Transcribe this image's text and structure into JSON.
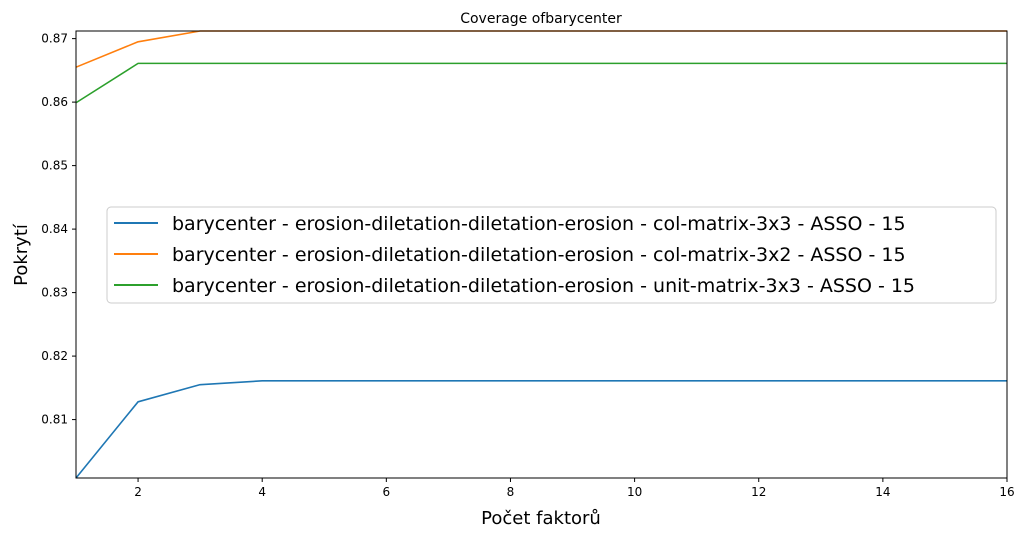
{
  "chart_data": {
    "type": "line",
    "title": "Coverage ofbarycenter",
    "xlabel": "Počet faktorů",
    "ylabel": "Pokrytí",
    "xlim": [
      1,
      16
    ],
    "ylim": [
      0.8008,
      0.8712
    ],
    "xticks": [
      2,
      4,
      6,
      8,
      10,
      12,
      14,
      16
    ],
    "yticks": [
      0.81,
      0.82,
      0.83,
      0.84,
      0.85,
      0.86,
      0.87
    ],
    "grid": false,
    "legend_position": "center-left",
    "x": [
      1,
      2,
      3,
      4,
      5,
      6,
      7,
      8,
      9,
      10,
      11,
      12,
      13,
      14,
      15,
      16
    ],
    "series": [
      {
        "name": "barycenter - erosion-diletation-diletation-erosion - col-matrix-3x3 - ASSO - 15",
        "color": "#1f77b4",
        "values": [
          0.8008,
          0.8128,
          0.8155,
          0.8161,
          0.8161,
          0.8161,
          0.8161,
          0.8161,
          0.8161,
          0.8161,
          0.8161,
          0.8161,
          0.8161,
          0.8161,
          0.8161,
          0.8161
        ]
      },
      {
        "name": "barycenter - erosion-diletation-diletation-erosion - col-matrix-3x2 - ASSO - 15",
        "color": "#ff7f0e",
        "values": [
          0.8655,
          0.8695,
          0.8712,
          0.8712,
          0.8712,
          0.8712,
          0.8712,
          0.8712,
          0.8712,
          0.8712,
          0.8712,
          0.8712,
          0.8712,
          0.8712,
          0.8712,
          0.8712
        ]
      },
      {
        "name": "barycenter - erosion-diletation-diletation-erosion - unit-matrix-3x3 - ASSO - 15",
        "color": "#2ca02c",
        "values": [
          0.8599,
          0.8661,
          0.8661,
          0.8661,
          0.8661,
          0.8661,
          0.8661,
          0.8661,
          0.8661,
          0.8661,
          0.8661,
          0.8661,
          0.8661,
          0.8661,
          0.8661,
          0.8661
        ]
      }
    ]
  }
}
